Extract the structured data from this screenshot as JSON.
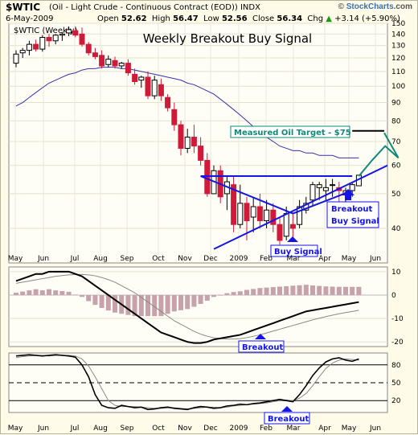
{
  "header": {
    "symbol": "$WTIC",
    "description": "(Oil - Light Crude - Continuous Contract (EOD)) INDX",
    "date": "6-May-2009",
    "open_label": "Open",
    "open": "52.62",
    "high_label": "High",
    "high": "56.47",
    "low_label": "Low",
    "low": "52.56",
    "close_label": "Close",
    "close": "56.34",
    "chg_label": "Chg",
    "chg": "+3.14 (+5.90%)",
    "change_arrow": "up",
    "brand_prefix": "© ",
    "brand_name": "StockCharts",
    "brand_suffix": ".com"
  },
  "chart_data": [
    {
      "type": "candlestick",
      "legend": "$WTIC (Weekly)",
      "title": "Weekly Breakout Buy Signal",
      "y_scale": "log",
      "ylim": [
        32,
        150
      ],
      "y_ticks": [
        40,
        50,
        60,
        70,
        80,
        90,
        100,
        110,
        120,
        130,
        140,
        150
      ],
      "x_ticks": [
        "May",
        "Jun",
        "Jul",
        "Aug",
        "Sep",
        "Oct",
        "Nov",
        "Dec",
        "2009",
        "Feb",
        "Mar",
        "Apr",
        "May",
        "Jun"
      ],
      "candles": [
        {
          "o": 116,
          "h": 126,
          "l": 113,
          "c": 123
        },
        {
          "o": 124,
          "h": 128,
          "l": 120,
          "c": 126
        },
        {
          "o": 126,
          "h": 134,
          "l": 122,
          "c": 131
        },
        {
          "o": 131,
          "h": 135,
          "l": 125,
          "c": 127
        },
        {
          "o": 127,
          "h": 139,
          "l": 125,
          "c": 137
        },
        {
          "o": 137,
          "h": 140,
          "l": 129,
          "c": 134
        },
        {
          "o": 134,
          "h": 140,
          "l": 131,
          "c": 139
        },
        {
          "o": 139,
          "h": 142,
          "l": 134,
          "c": 140
        },
        {
          "o": 141,
          "h": 147,
          "l": 138,
          "c": 144
        },
        {
          "o": 143,
          "h": 147,
          "l": 137,
          "c": 139
        },
        {
          "o": 140,
          "h": 146,
          "l": 129,
          "c": 131
        },
        {
          "o": 131,
          "h": 133,
          "l": 122,
          "c": 124
        },
        {
          "o": 124,
          "h": 128,
          "l": 119,
          "c": 121
        },
        {
          "o": 122,
          "h": 126,
          "l": 112,
          "c": 114
        },
        {
          "o": 115,
          "h": 122,
          "l": 113,
          "c": 119
        },
        {
          "o": 118,
          "h": 121,
          "l": 112,
          "c": 114
        },
        {
          "o": 114,
          "h": 117,
          "l": 112,
          "c": 116
        },
        {
          "o": 116,
          "h": 119,
          "l": 107,
          "c": 109
        },
        {
          "o": 108,
          "h": 112,
          "l": 101,
          "c": 103
        },
        {
          "o": 104,
          "h": 107,
          "l": 99,
          "c": 106
        },
        {
          "o": 106,
          "h": 110,
          "l": 92,
          "c": 94
        },
        {
          "o": 94,
          "h": 107,
          "l": 92,
          "c": 104
        },
        {
          "o": 101,
          "h": 105,
          "l": 91,
          "c": 94
        },
        {
          "o": 93,
          "h": 95,
          "l": 85,
          "c": 87
        },
        {
          "o": 86,
          "h": 90,
          "l": 75,
          "c": 78
        },
        {
          "o": 78,
          "h": 80,
          "l": 64,
          "c": 67
        },
        {
          "o": 67,
          "h": 76,
          "l": 65,
          "c": 72
        },
        {
          "o": 72,
          "h": 78,
          "l": 65,
          "c": 68
        },
        {
          "o": 68,
          "h": 72,
          "l": 60,
          "c": 62
        },
        {
          "o": 62,
          "h": 65,
          "l": 49,
          "c": 50
        },
        {
          "o": 50,
          "h": 60,
          "l": 50,
          "c": 58
        },
        {
          "o": 58,
          "h": 60,
          "l": 47,
          "c": 49
        },
        {
          "o": 50,
          "h": 56,
          "l": 45,
          "c": 54
        },
        {
          "o": 53,
          "h": 56,
          "l": 39,
          "c": 41
        },
        {
          "o": 41,
          "h": 53,
          "l": 40,
          "c": 47
        },
        {
          "o": 47,
          "h": 49,
          "l": 37,
          "c": 42
        },
        {
          "o": 43,
          "h": 49,
          "l": 39,
          "c": 46
        },
        {
          "o": 46,
          "h": 50,
          "l": 40,
          "c": 42
        },
        {
          "o": 42,
          "h": 48,
          "l": 40,
          "c": 45
        },
        {
          "o": 45,
          "h": 47,
          "l": 39,
          "c": 41
        },
        {
          "o": 41,
          "h": 43,
          "l": 36,
          "c": 37
        },
        {
          "o": 38,
          "h": 46,
          "l": 37,
          "c": 44
        },
        {
          "o": 41,
          "h": 44,
          "l": 37,
          "c": 40
        },
        {
          "o": 41,
          "h": 48,
          "l": 40,
          "c": 46
        },
        {
          "o": 45,
          "h": 49,
          "l": 44,
          "c": 47
        },
        {
          "o": 48,
          "h": 54,
          "l": 46,
          "c": 53
        },
        {
          "o": 52,
          "h": 54,
          "l": 48,
          "c": 53
        },
        {
          "o": 51,
          "h": 55,
          "l": 48,
          "c": 52
        },
        {
          "o": 53,
          "h": 55,
          "l": 49,
          "c": 53
        },
        {
          "o": 52,
          "h": 54,
          "l": 47,
          "c": 51
        },
        {
          "o": 50,
          "h": 52,
          "l": 47,
          "c": 51
        },
        {
          "o": 51,
          "h": 54,
          "l": 49,
          "c": 53
        },
        {
          "o": 52.62,
          "h": 56.47,
          "l": 52.56,
          "c": 56.34
        }
      ],
      "moving_average": [
        88,
        90,
        93,
        96,
        99,
        102,
        104,
        106,
        108,
        109,
        111,
        112,
        112,
        113,
        113,
        113,
        112,
        112,
        111,
        110,
        109,
        108,
        107,
        106,
        105,
        104,
        102,
        101,
        99,
        97,
        95,
        92,
        89,
        86,
        83,
        80,
        77,
        74,
        72,
        70,
        68,
        67,
        66,
        66,
        65,
        65,
        64,
        64,
        64,
        63,
        63,
        63,
        63
      ],
      "annotations": [
        {
          "text": "Measured Oil Target - $75"
        },
        {
          "text": "Breakout"
        },
        {
          "text": "Buy Signal"
        },
        {
          "text": "Buy Signal"
        }
      ],
      "colors": {
        "up": "#000000",
        "down": "#d11a3a",
        "moving_average": "#3333aa",
        "trendlines": "#1414e6",
        "target": "#0f8a7a"
      }
    },
    {
      "type": "line+histogram",
      "name": "MACD",
      "ylim": [
        -22,
        12
      ],
      "y_ticks": [
        10,
        0,
        -10,
        -20
      ],
      "macd": [
        6,
        7,
        8,
        9,
        9,
        10,
        10,
        10,
        10,
        9,
        8,
        6,
        4,
        2,
        0,
        -2,
        -4,
        -6,
        -8,
        -10,
        -12,
        -14,
        -16,
        -17,
        -18,
        -19,
        -20,
        -20.5,
        -20.5,
        -20,
        -19,
        -18.5,
        -18,
        -17.5,
        -17,
        -16,
        -15,
        -14,
        -13,
        -12,
        -11,
        -10,
        -9,
        -8,
        -7,
        -6.5,
        -6,
        -5.5,
        -5,
        -4.5,
        -4,
        -3.5,
        -3
      ],
      "signal": [
        5,
        5.5,
        6,
        6.5,
        7,
        7.5,
        8,
        8.3,
        8.6,
        8.8,
        8.8,
        8.6,
        8.2,
        7.5,
        6.6,
        5.5,
        4,
        2.5,
        1,
        -1,
        -3,
        -5,
        -7,
        -9,
        -11,
        -12.5,
        -14,
        -15.5,
        -16.7,
        -17.6,
        -18.2,
        -18.6,
        -18.8,
        -18.8,
        -18.6,
        -18.2,
        -17.6,
        -17,
        -16.2,
        -15.4,
        -14.6,
        -13.8,
        -13,
        -12.2,
        -11.4,
        -10.6,
        -9.9,
        -9.2,
        -8.6,
        -8,
        -7.5,
        -7,
        -6.5
      ],
      "histogram": [
        1,
        1.5,
        2,
        2.5,
        2,
        2.5,
        2,
        1.7,
        1.4,
        0.2,
        -0.8,
        -2.6,
        -4.2,
        -5.5,
        -6.6,
        -7.5,
        -8,
        -8.5,
        -9,
        -9,
        -9,
        -9,
        -9,
        -8,
        -7,
        -6.5,
        -6,
        -5,
        -3.8,
        -2.4,
        -0.8,
        0.1,
        0.8,
        1.3,
        1.6,
        2.2,
        2.6,
        3,
        3.2,
        3.4,
        3.6,
        3.8,
        4,
        4.2,
        4.4,
        4.1,
        3.9,
        3.7,
        3.6,
        3.5,
        3.5,
        3.5,
        3.5
      ],
      "annotations": [
        {
          "text": "Breakout"
        }
      ],
      "colors": {
        "macd": "#000000",
        "signal": "#888888",
        "histogram": "#c7a2ad"
      }
    },
    {
      "type": "line",
      "name": "Stochastic",
      "ylim": [
        0,
        100
      ],
      "y_ticks": [
        80,
        50,
        20
      ],
      "k": [
        95,
        96,
        97,
        96,
        95,
        96,
        97,
        96,
        95,
        93,
        80,
        60,
        30,
        12,
        8,
        7,
        12,
        10,
        8,
        9,
        5,
        6,
        8,
        9,
        7,
        6,
        5,
        8,
        10,
        9,
        7,
        8,
        11,
        12,
        14,
        13,
        15,
        16,
        18,
        20,
        22,
        20,
        18,
        30,
        45,
        62,
        75,
        85,
        90,
        92,
        88,
        86,
        90
      ],
      "d": [
        92,
        94,
        95,
        96,
        96,
        95,
        96,
        96,
        96,
        95,
        90,
        78,
        60,
        40,
        20,
        12,
        10,
        10,
        10,
        9,
        8,
        7,
        7,
        8,
        8,
        7,
        6,
        7,
        8,
        9,
        9,
        8,
        9,
        11,
        12,
        13,
        14,
        15,
        16,
        18,
        20,
        21,
        20,
        24,
        32,
        45,
        60,
        74,
        83,
        88,
        90,
        89,
        88
      ],
      "annotations": [
        {
          "text": "Breakout"
        }
      ],
      "colors": {
        "k": "#000000",
        "d": "#888888"
      }
    }
  ]
}
